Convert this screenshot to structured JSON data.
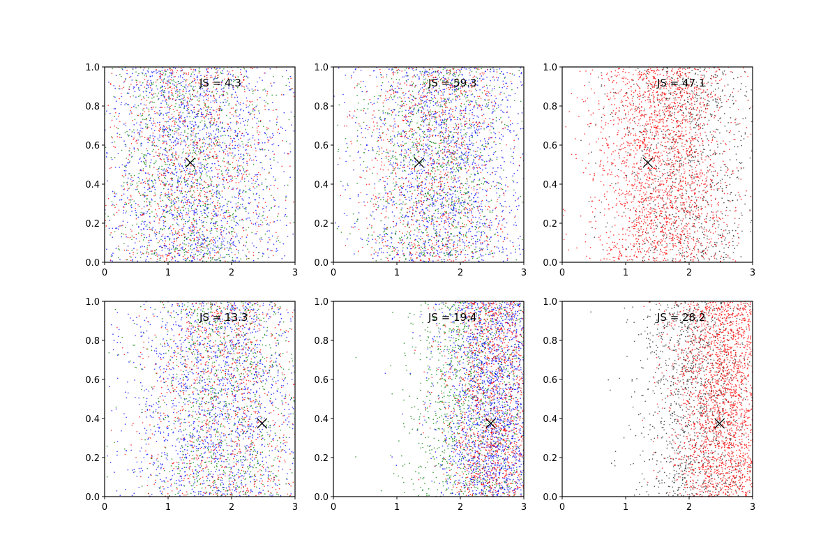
{
  "figure": {
    "background": "#ffffff"
  },
  "chart_data": [
    {
      "type": "scatter",
      "panel": "top-left",
      "annotation": "JS = 4.3",
      "xlim": [
        0,
        3
      ],
      "ylim": [
        0,
        1
      ],
      "xticks": [
        "0",
        "1",
        "2",
        "3"
      ],
      "yticks": [
        "0.0",
        "0.2",
        "0.4",
        "0.6",
        "0.8",
        "1.0"
      ],
      "marker": {
        "x": 1.35,
        "y": 0.51,
        "symbol": "x",
        "color": "#000000"
      },
      "series": [
        {
          "color": "#0000ff",
          "count": 1600,
          "x_dist": {
            "mean": 1.4,
            "sd": 0.75
          }
        },
        {
          "color": "#008000",
          "count": 1000,
          "x_dist": {
            "mean": 1.35,
            "sd": 0.7
          }
        },
        {
          "color": "#ff0000",
          "count": 1000,
          "x_dist": {
            "mean": 1.35,
            "sd": 0.7
          }
        }
      ]
    },
    {
      "type": "scatter",
      "panel": "top-middle",
      "annotation": "JS = 59.3",
      "xlim": [
        0,
        3
      ],
      "ylim": [
        0,
        1
      ],
      "xticks": [
        "0",
        "1",
        "2",
        "3"
      ],
      "yticks": [
        "0.0",
        "0.2",
        "0.4",
        "0.6",
        "0.8",
        "1.0"
      ],
      "marker": {
        "x": 1.35,
        "y": 0.51,
        "symbol": "x",
        "color": "#000000"
      },
      "series": [
        {
          "color": "#0000ff",
          "count": 1600,
          "x_dist": {
            "mean": 1.75,
            "sd": 0.7
          }
        },
        {
          "color": "#008000",
          "count": 1000,
          "x_dist": {
            "mean": 1.6,
            "sd": 0.6
          }
        },
        {
          "color": "#ff0000",
          "count": 1000,
          "x_dist": {
            "mean": 1.6,
            "sd": 0.6
          }
        }
      ]
    },
    {
      "type": "scatter",
      "panel": "top-right",
      "annotation": "JS = 47.1",
      "xlim": [
        0,
        3
      ],
      "ylim": [
        0,
        1
      ],
      "xticks": [
        "0",
        "1",
        "2",
        "3"
      ],
      "yticks": [
        "0.0",
        "0.2",
        "0.4",
        "0.6",
        "0.8",
        "1.0"
      ],
      "marker": {
        "x": 1.35,
        "y": 0.51,
        "symbol": "x",
        "color": "#000000"
      },
      "series": [
        {
          "color": "#222222",
          "count": 1000,
          "x_dist": {
            "mean": 2.0,
            "sd": 0.6
          }
        },
        {
          "color": "#ff0000",
          "count": 2200,
          "x_dist": {
            "mean": 1.55,
            "sd": 0.55
          }
        }
      ]
    },
    {
      "type": "scatter",
      "panel": "bottom-left",
      "annotation": "JS = 13.3",
      "xlim": [
        0,
        3
      ],
      "ylim": [
        0,
        1
      ],
      "xticks": [
        "0",
        "1",
        "2",
        "3"
      ],
      "yticks": [
        "0.0",
        "0.2",
        "0.4",
        "0.6",
        "0.8",
        "1.0"
      ],
      "marker": {
        "x": 2.48,
        "y": 0.375,
        "symbol": "x",
        "color": "#000000"
      },
      "series": [
        {
          "color": "#0000ff",
          "count": 1500,
          "x_dist": {
            "mean": 1.8,
            "sd": 0.75
          }
        },
        {
          "color": "#008000",
          "count": 900,
          "x_dist": {
            "mean": 1.9,
            "sd": 0.65
          }
        },
        {
          "color": "#ff0000",
          "count": 900,
          "x_dist": {
            "mean": 1.9,
            "sd": 0.65
          }
        }
      ]
    },
    {
      "type": "scatter",
      "panel": "bottom-middle",
      "annotation": "JS = 19.4",
      "xlim": [
        0,
        3
      ],
      "ylim": [
        0,
        1
      ],
      "xticks": [
        "0",
        "1",
        "2",
        "3"
      ],
      "yticks": [
        "0.0",
        "0.2",
        "0.4",
        "0.6",
        "0.8",
        "1.0"
      ],
      "marker": {
        "x": 2.48,
        "y": 0.375,
        "symbol": "x",
        "color": "#000000"
      },
      "series": [
        {
          "color": "#008000",
          "count": 1100,
          "x_dist": {
            "mean": 2.2,
            "sd": 0.55
          }
        },
        {
          "color": "#0000ff",
          "count": 1600,
          "x_dist": {
            "mean": 2.55,
            "sd": 0.45
          }
        },
        {
          "color": "#ff0000",
          "count": 1200,
          "x_dist": {
            "mean": 2.55,
            "sd": 0.4
          }
        }
      ]
    },
    {
      "type": "scatter",
      "panel": "bottom-right",
      "annotation": "JS = 28.2",
      "xlim": [
        0,
        3
      ],
      "ylim": [
        0,
        1
      ],
      "xticks": [
        "0",
        "1",
        "2",
        "3"
      ],
      "yticks": [
        "0.0",
        "0.2",
        "0.4",
        "0.6",
        "0.8",
        "1.0"
      ],
      "marker": {
        "x": 2.48,
        "y": 0.375,
        "symbol": "x",
        "color": "#000000"
      },
      "series": [
        {
          "color": "#222222",
          "count": 1200,
          "x_dist": {
            "mean": 2.1,
            "sd": 0.45
          }
        },
        {
          "color": "#ff0000",
          "count": 2000,
          "x_dist": {
            "mean": 2.55,
            "sd": 0.4
          }
        }
      ]
    }
  ]
}
